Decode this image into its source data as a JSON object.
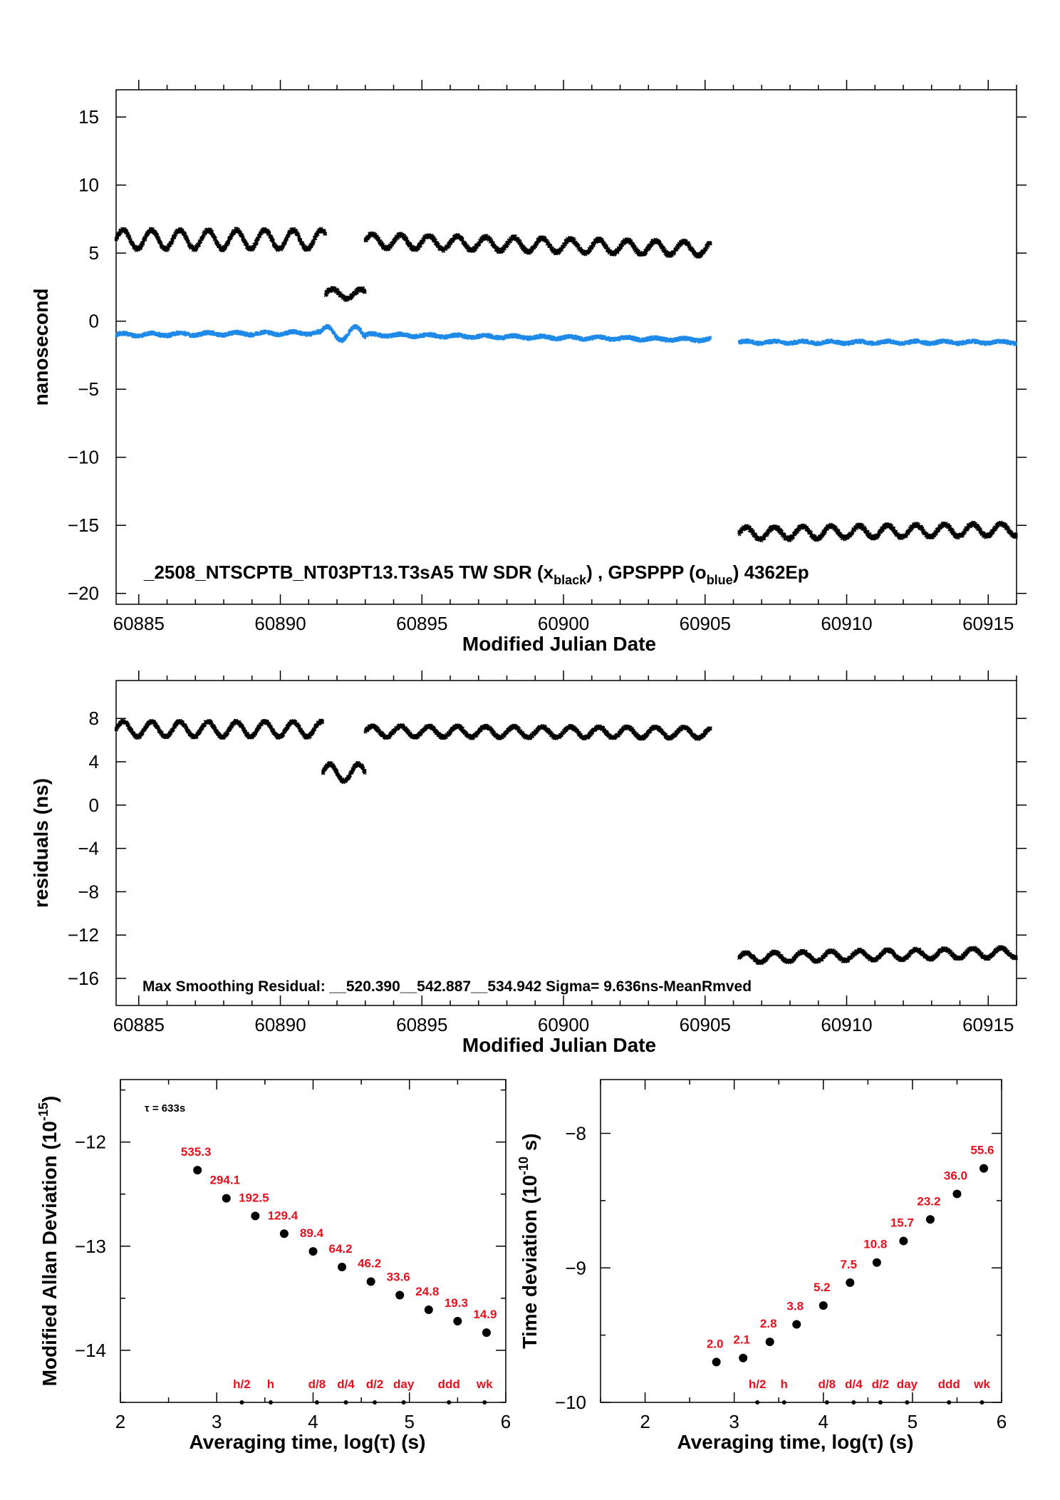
{
  "chart_data": [
    {
      "type": "scatter",
      "xlabel": "Modified Julian Date",
      "ylabel": "nanosecond",
      "xlim": [
        60884.2,
        60916
      ],
      "ylim": [
        -20.8,
        17
      ],
      "xticks": [
        60885,
        60890,
        60895,
        60900,
        60905,
        60910,
        60915
      ],
      "yticks": [
        15,
        10,
        5,
        0,
        -5,
        -10,
        -15,
        -20
      ],
      "annotation": {
        "id": "_2508_NTSCPTB_NT03PT13.T3sA5",
        "tw": "TW SDR (x",
        "tw_sub": "black",
        "sep": ") ,  GPSPPP (o",
        "gps_sub": "blue",
        "tail": ")  4362Ep"
      },
      "series": [
        {
          "marker": "x",
          "color": "#000000",
          "segments": [
            {
              "x0": 60884.2,
              "x1": 60891.6,
              "base": 6.0,
              "amp": 0.7,
              "trend": 0.0
            },
            {
              "x0": 60891.6,
              "x1": 60893.0,
              "base": 2.0,
              "amp": 0.35,
              "trend": 0.0
            },
            {
              "x0": 60893.0,
              "x1": 60905.2,
              "base": 5.9,
              "amp": 0.5,
              "trend": -0.05
            },
            {
              "x0": 60906.2,
              "x1": 60916.0,
              "base": -15.6,
              "amp": 0.45,
              "trend": 0.03
            }
          ]
        },
        {
          "marker": "o",
          "color": "#1f8ae8",
          "segments": [
            {
              "x0": 60884.2,
              "x1": 60891.4,
              "base": -1.0,
              "amp": 0.1,
              "trend": 0.02
            },
            {
              "x0": 60891.4,
              "x1": 60893.0,
              "base": -0.9,
              "amp": 0.5,
              "trend": 0.0
            },
            {
              "x0": 60893.0,
              "x1": 60905.2,
              "base": -1.0,
              "amp": 0.08,
              "trend": -0.03
            },
            {
              "x0": 60906.2,
              "x1": 60916.0,
              "base": -1.55,
              "amp": 0.08,
              "trend": 0.0
            }
          ]
        }
      ]
    },
    {
      "type": "scatter",
      "xlabel": "Modified Julian Date",
      "ylabel": "residuals (ns)",
      "xlim": [
        60884.2,
        60916
      ],
      "ylim": [
        -18.5,
        11.5
      ],
      "xticks": [
        60885,
        60890,
        60895,
        60900,
        60905,
        60910,
        60915
      ],
      "yticks": [
        8,
        4,
        0,
        -4,
        -8,
        -12,
        -16
      ],
      "annotation": "Max Smoothing Residual: __520.390__542.887__534.942  Sigma= 9.636ns-MeanRmved",
      "series": [
        {
          "marker": "x",
          "color": "#000000",
          "segments": [
            {
              "x0": 60884.2,
              "x1": 60891.5,
              "base": 7.0,
              "amp": 0.7,
              "trend": 0.0
            },
            {
              "x0": 60891.5,
              "x1": 60893.0,
              "base": 3.0,
              "amp": 0.8,
              "trend": 0.0
            },
            {
              "x0": 60893.0,
              "x1": 60905.2,
              "base": 6.8,
              "amp": 0.5,
              "trend": -0.01
            },
            {
              "x0": 60906.2,
              "x1": 60916.0,
              "base": -14.1,
              "amp": 0.45,
              "trend": 0.05
            }
          ]
        }
      ]
    },
    {
      "type": "scatter",
      "xlabel": "Averaging time, log(τ) (s)",
      "ylabel": "Modified Allan Deviation (10",
      "ylabel_sup": "-15",
      "ylabel_tail": ")",
      "xlim": [
        2,
        6
      ],
      "ylim": [
        -14.5,
        -11.4
      ],
      "xticks": [
        2,
        3,
        4,
        5,
        6
      ],
      "yticks": [
        -12,
        -13,
        -14
      ],
      "note": "τ = 633s",
      "x": [
        2.8,
        3.1,
        3.4,
        3.7,
        4.0,
        4.3,
        4.6,
        4.9,
        5.2,
        5.5,
        5.8
      ],
      "y": [
        -12.27,
        -12.54,
        -12.71,
        -12.88,
        -13.05,
        -13.2,
        -13.34,
        -13.47,
        -13.61,
        -13.72,
        -13.83
      ],
      "labels": [
        "535.3",
        "294.1",
        "192.5",
        "129.4",
        "89.4",
        "64.2",
        "46.2",
        "33.6",
        "24.8",
        "19.3",
        "14.9"
      ],
      "markers": [
        {
          "label": "h/2",
          "x": 3.26
        },
        {
          "label": "h",
          "x": 3.56
        },
        {
          "label": "d/8",
          "x": 4.04
        },
        {
          "label": "d/4",
          "x": 4.34
        },
        {
          "label": "d/2",
          "x": 4.64
        },
        {
          "label": "day",
          "x": 4.94
        },
        {
          "label": "ddd",
          "x": 5.41
        },
        {
          "label": "wk",
          "x": 5.78
        }
      ]
    },
    {
      "type": "scatter",
      "xlabel": "Averaging time, log(τ) (s)",
      "ylabel": "Time deviation (10",
      "ylabel_sup": "-10",
      "ylabel_tail": " s)",
      "xlim": [
        1.5,
        6
      ],
      "ylim": [
        -10,
        -7.6
      ],
      "xticks": [
        2,
        3,
        4,
        5,
        6
      ],
      "yticks": [
        -8,
        -9,
        -10
      ],
      "x": [
        2.8,
        3.1,
        3.4,
        3.7,
        4.0,
        4.3,
        4.6,
        4.9,
        5.2,
        5.5,
        5.8
      ],
      "y": [
        -9.7,
        -9.67,
        -9.55,
        -9.42,
        -9.28,
        -9.11,
        -8.96,
        -8.8,
        -8.64,
        -8.45,
        -8.26
      ],
      "labels": [
        "2.0",
        "2.1",
        "2.8",
        "3.8",
        "5.2",
        "7.5",
        "10.8",
        "15.7",
        "23.2",
        "36.0",
        "55.6"
      ],
      "markers": [
        {
          "label": "h/2",
          "x": 3.26
        },
        {
          "label": "h",
          "x": 3.56
        },
        {
          "label": "d/8",
          "x": 4.04
        },
        {
          "label": "d/4",
          "x": 4.34
        },
        {
          "label": "d/2",
          "x": 4.64
        },
        {
          "label": "day",
          "x": 4.94
        },
        {
          "label": "ddd",
          "x": 5.41
        },
        {
          "label": "wk",
          "x": 5.78
        }
      ]
    }
  ]
}
